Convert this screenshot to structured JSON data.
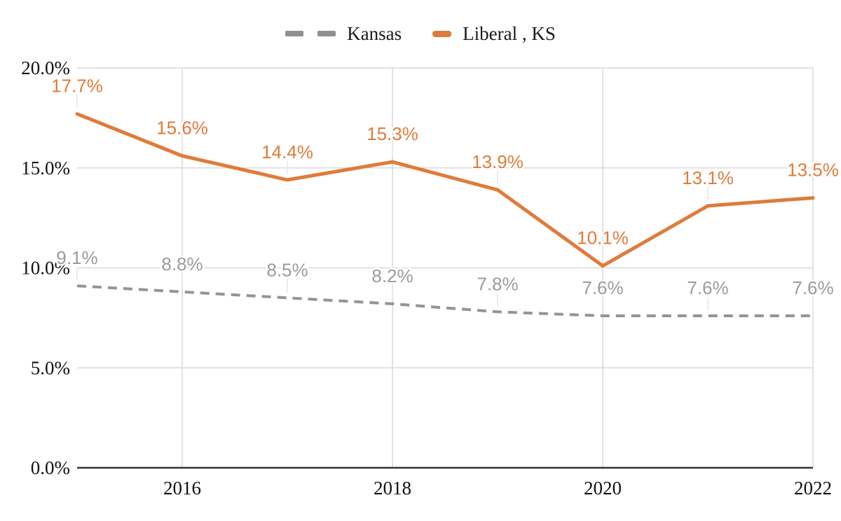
{
  "legend": {
    "items": [
      {
        "label": "Kansas",
        "style": "dashed",
        "color": "#8f8f8f"
      },
      {
        "label": "Liberal , KS",
        "style": "solid",
        "color": "#e07b39"
      }
    ]
  },
  "chart_data": {
    "type": "line",
    "x": [
      2015,
      2016,
      2017,
      2018,
      2019,
      2020,
      2021,
      2022
    ],
    "x_tick_values": [
      2016,
      2018,
      2020,
      2022
    ],
    "x_tick_labels": [
      "2016",
      "2018",
      "2020",
      "2022"
    ],
    "y_tick_values": [
      0,
      5,
      10,
      15,
      20
    ],
    "y_tick_labels": [
      "0.0%",
      "5.0%",
      "10.0%",
      "15.0%",
      "20.0%"
    ],
    "ylim": [
      0,
      20
    ],
    "grid": true,
    "legend_position": "top",
    "series": [
      {
        "name": "Kansas",
        "values": [
          9.1,
          8.8,
          8.5,
          8.2,
          7.8,
          7.6,
          7.6,
          7.6
        ],
        "point_labels": [
          "9.1%",
          "8.8%",
          "8.5%",
          "8.2%",
          "7.8%",
          "7.6%",
          "7.6%",
          "7.6%"
        ],
        "line_style": "dashed",
        "color": "#949494",
        "label_color": "#9b9b9b"
      },
      {
        "name": "Liberal , KS",
        "values": [
          17.7,
          15.6,
          14.4,
          15.3,
          13.9,
          10.1,
          13.1,
          13.5
        ],
        "point_labels": [
          "17.7%",
          "15.6%",
          "14.4%",
          "15.3%",
          "13.9%",
          "10.1%",
          "13.1%",
          "13.5%"
        ],
        "line_style": "solid",
        "color": "#e07b39",
        "label_color": "#e07b39"
      }
    ]
  },
  "colors": {
    "background": "#ffffff",
    "gridline": "#d9d9d9",
    "leader_line": "#e6e6e6",
    "axis_line": "#333333",
    "tick_label": "#111111"
  }
}
